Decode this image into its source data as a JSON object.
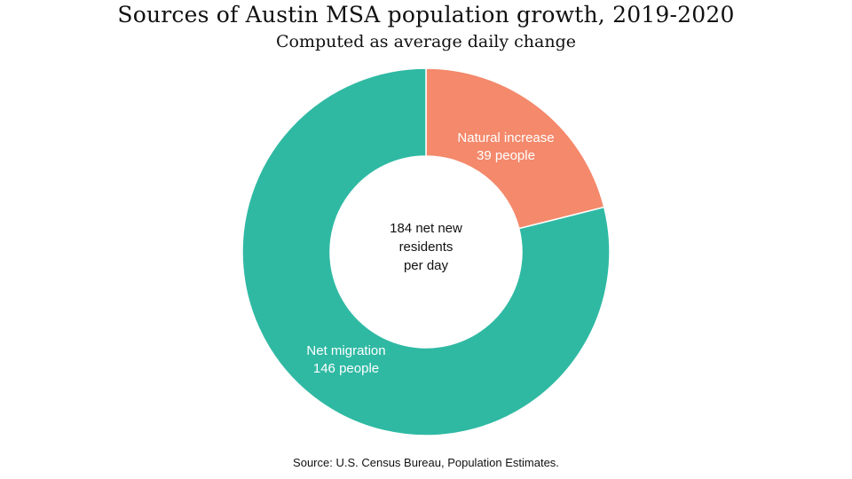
{
  "title": "Sources of Austin MSA population growth, 2019-2020",
  "subtitle": "Computed as average daily change",
  "source": "Source: U.S. Census Bureau, Population Estimates.",
  "chart_data": {
    "type": "pie",
    "donut": true,
    "title": "Sources of Austin MSA population growth, 2019-2020",
    "subtitle": "Computed as average daily change",
    "center_text": [
      "184 net new",
      "residents",
      "per day"
    ],
    "slices": [
      {
        "name": "Natural increase",
        "value": 39,
        "label_lines": [
          "Natural increase",
          "39 people"
        ],
        "color": "#F4896B"
      },
      {
        "name": "Net migration",
        "value": 146,
        "label_lines": [
          "Net migration",
          "146 people"
        ],
        "color": "#2FB9A3"
      }
    ]
  }
}
